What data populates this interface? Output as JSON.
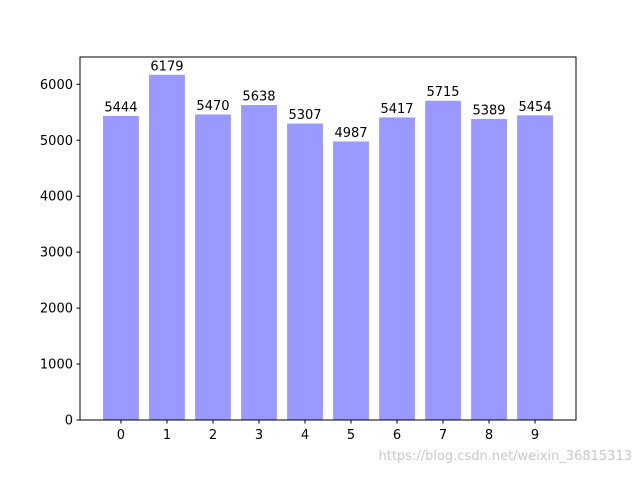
{
  "chart_data": {
    "type": "bar",
    "categories": [
      "0",
      "1",
      "2",
      "3",
      "4",
      "5",
      "6",
      "7",
      "8",
      "9"
    ],
    "values": [
      5444,
      6179,
      5470,
      5638,
      5307,
      4987,
      5417,
      5715,
      5389,
      5454
    ],
    "color": "#9999ff",
    "ylim": [
      0,
      6487.95
    ],
    "yticks": [
      0,
      1000,
      2000,
      3000,
      4000,
      5000,
      6000
    ],
    "grid": false,
    "value_labels_shown": true,
    "watermark": "https://blog.csdn.net/weixin_36815313"
  }
}
